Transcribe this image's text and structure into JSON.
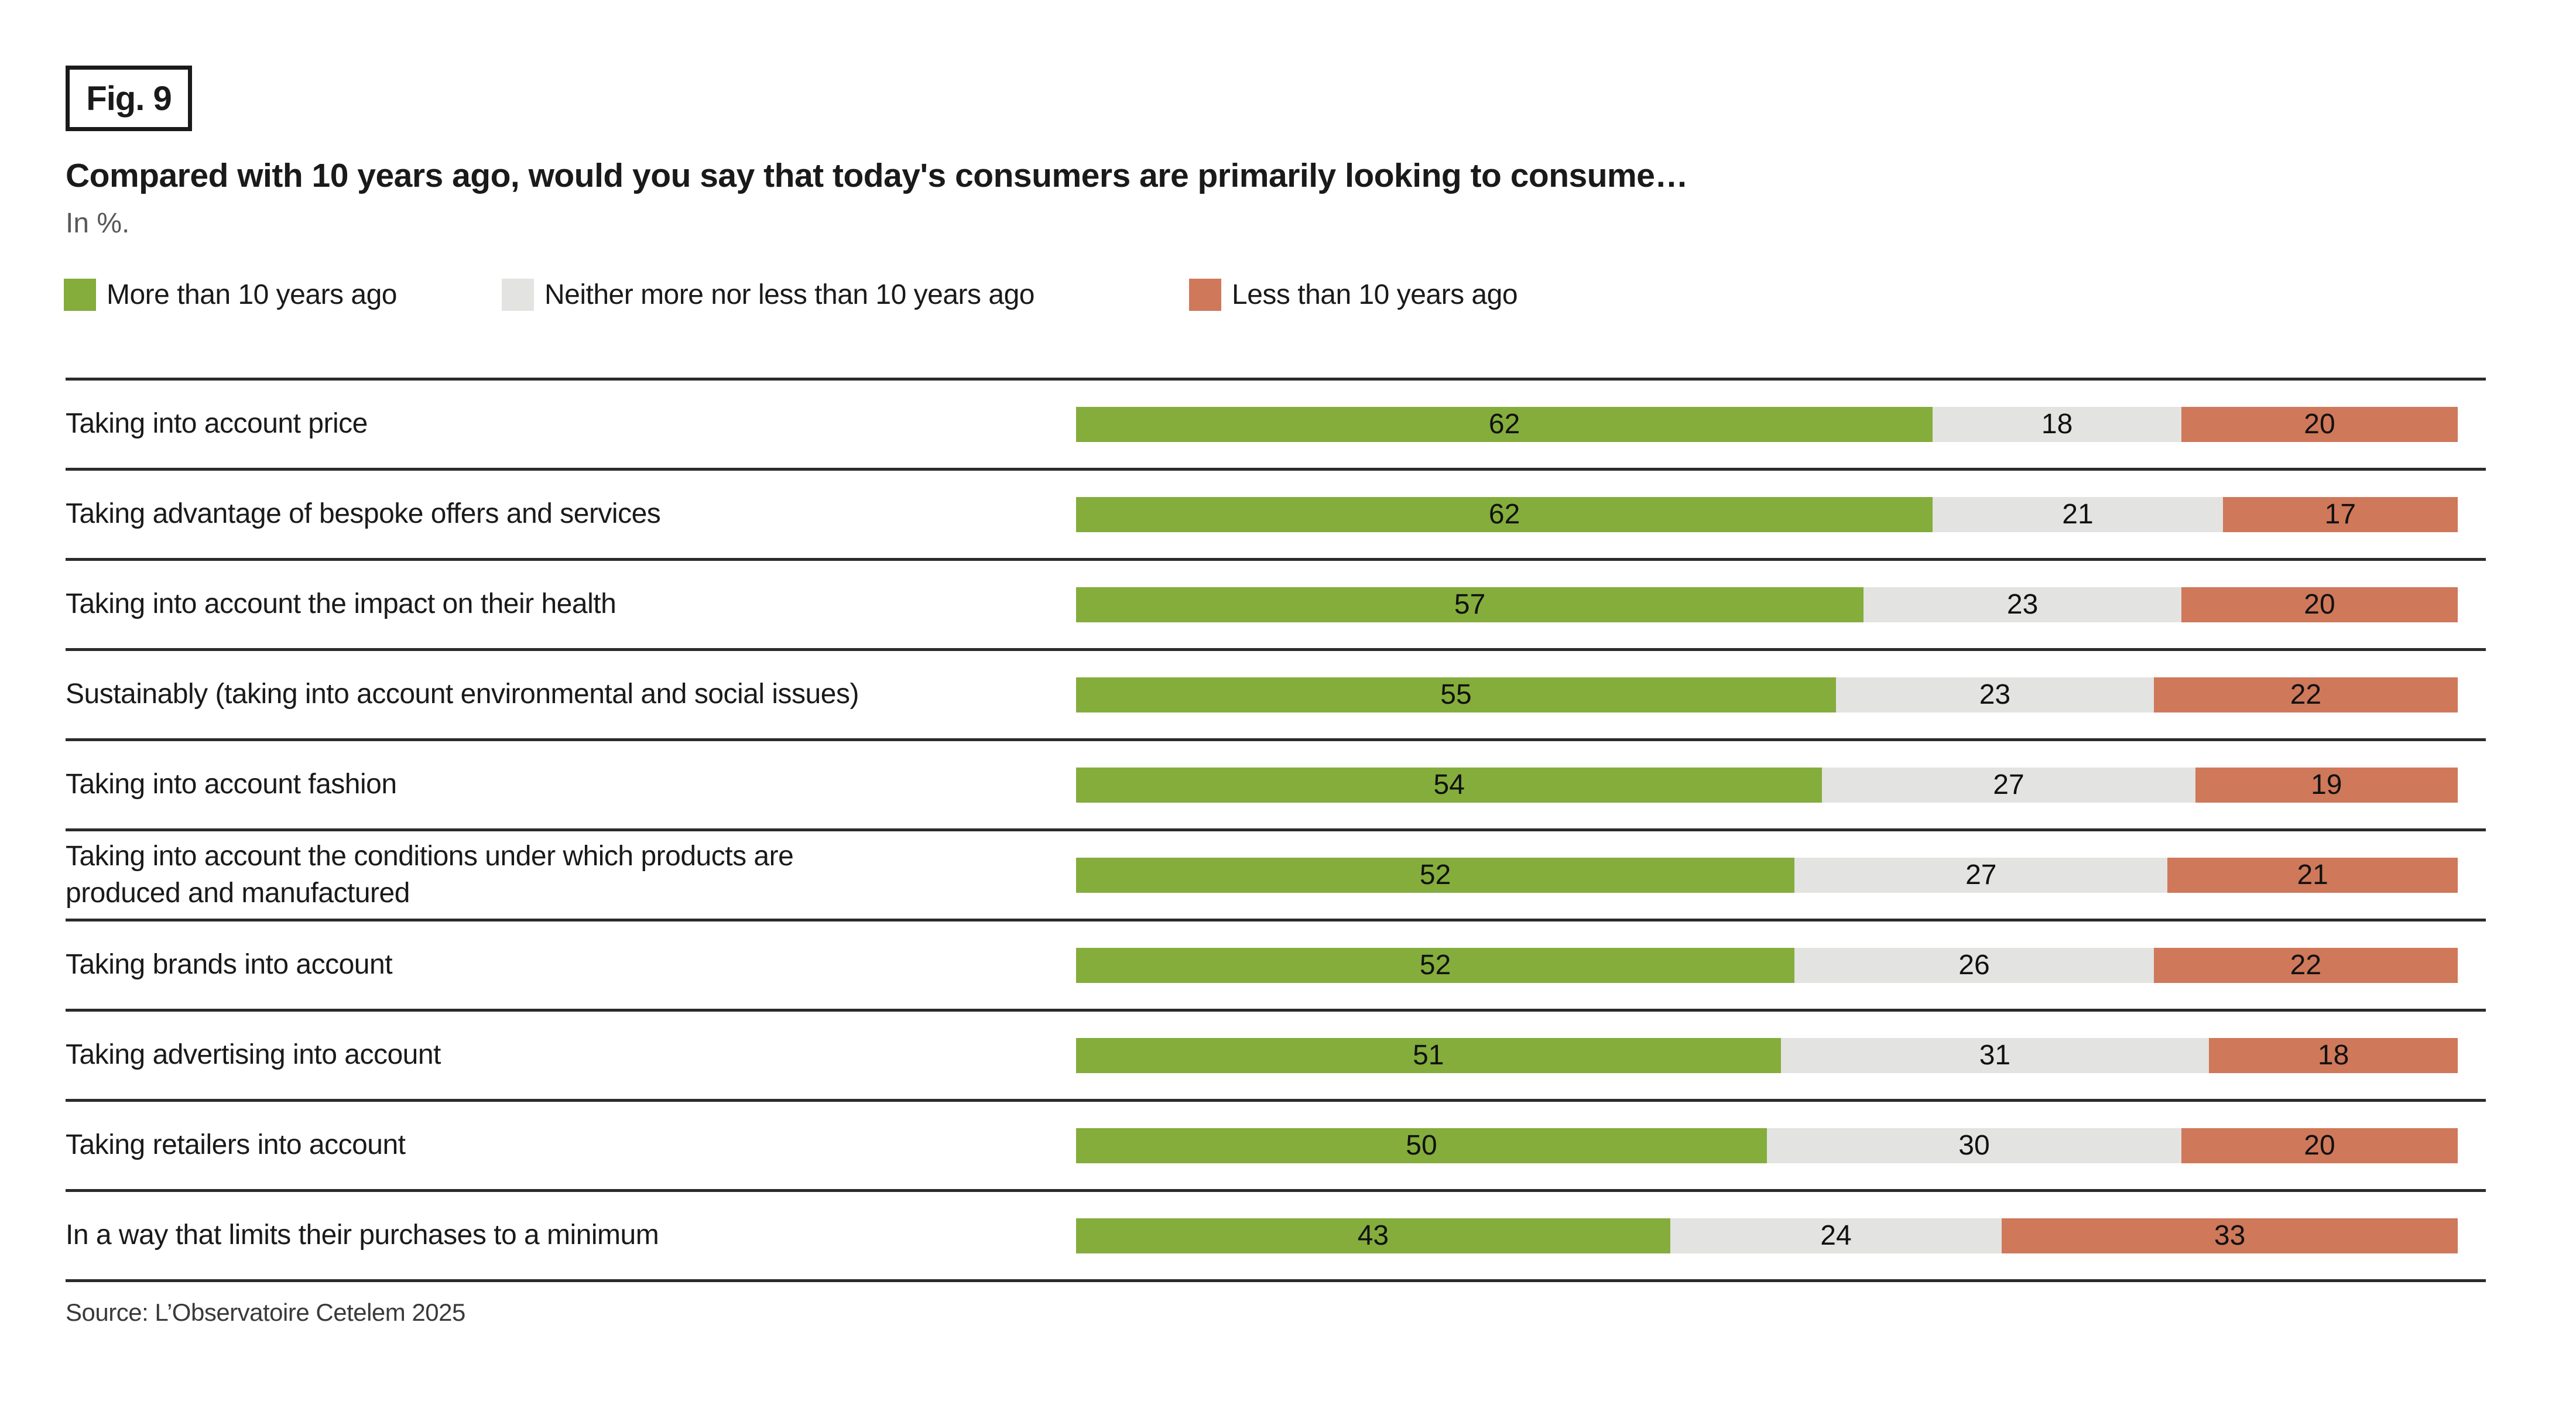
{
  "header": {
    "fig_label": "Fig. 9",
    "title": "Compared with 10 years ago, would you say that today's consumers are primarily looking to consume…",
    "subtitle": "In %."
  },
  "source": "Source: L’Observatoire Cetelem 2025",
  "colors": {
    "more": "#84ad3c",
    "neither": "#e3e3e1",
    "less": "#cf785a",
    "separator_line": "#2b2b2b",
    "subtitle_text": "#58585a"
  },
  "chart_data": {
    "type": "bar",
    "orientation": "horizontal-stacked",
    "value_unit": "%",
    "xlim": [
      0,
      100
    ],
    "grid": false,
    "legend_position": "top",
    "categories": [
      "Taking into account price",
      "Taking advantage of bespoke offers and services",
      "Taking into account the impact on their health",
      "Sustainably (taking into account environmental and social issues)",
      "Taking into account fashion",
      "Taking into account the conditions under which products are\nproduced and manufactured",
      "Taking brands into account",
      "Taking advertising into account",
      "Taking retailers into account",
      "In a way that limits their purchases to a minimum"
    ],
    "series": [
      {
        "name": "More than 10 years ago",
        "color": "#84ad3c",
        "values": [
          62,
          62,
          57,
          55,
          54,
          52,
          52,
          51,
          50,
          43
        ]
      },
      {
        "name": "Neither more nor less than 10 years ago",
        "color": "#e3e3e1",
        "values": [
          18,
          21,
          23,
          23,
          27,
          27,
          26,
          31,
          30,
          24
        ]
      },
      {
        "name": "Less than 10 years ago",
        "color": "#cf785a",
        "values": [
          20,
          17,
          20,
          22,
          19,
          21,
          22,
          18,
          20,
          33
        ]
      }
    ]
  }
}
